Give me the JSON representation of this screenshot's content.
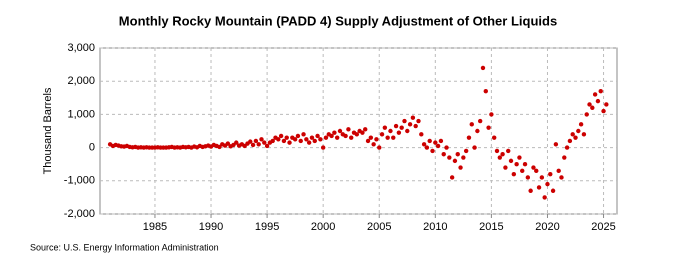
{
  "chart_data": {
    "type": "scatter",
    "title": "Monthly Rocky Mountain (PADD 4) Supply Adjustment of Other Liquids",
    "y_label": "Thousand Barrels",
    "source": "Source: U.S. Energy Information Administration",
    "color": "#cc0000",
    "grid": true,
    "xlim": [
      1980.1,
      2026.2
    ],
    "xticks": [
      1985,
      1990,
      1995,
      2000,
      2005,
      2010,
      2015,
      2020,
      2025
    ],
    "ylim": [
      -2000,
      3000
    ],
    "yticks": [
      {
        "value": -2000,
        "label": "-2,000"
      },
      {
        "value": -1000,
        "label": "-1,000"
      },
      0,
      {
        "value": 1000,
        "label": "1,000"
      },
      {
        "value": 2000,
        "label": "2,000"
      },
      {
        "value": 3000,
        "label": "3,000"
      }
    ],
    "x": [
      1981,
      1981.25,
      1981.5,
      1981.75,
      1982,
      1982.25,
      1982.5,
      1982.75,
      1983,
      1983.25,
      1983.5,
      1983.75,
      1984,
      1984.25,
      1984.5,
      1984.75,
      1985,
      1985.25,
      1985.5,
      1985.75,
      1986,
      1986.25,
      1986.5,
      1986.75,
      1987,
      1987.25,
      1987.5,
      1987.75,
      1988,
      1988.25,
      1988.5,
      1988.75,
      1989,
      1989.25,
      1989.5,
      1989.75,
      1990,
      1990.25,
      1990.5,
      1990.75,
      1991,
      1991.25,
      1991.5,
      1991.75,
      1992,
      1992.25,
      1992.5,
      1992.75,
      1993,
      1993.25,
      1993.5,
      1993.75,
      1994,
      1994.25,
      1994.5,
      1994.75,
      1995,
      1995.25,
      1995.5,
      1995.75,
      1996,
      1996.25,
      1996.5,
      1996.75,
      1997,
      1997.25,
      1997.5,
      1997.75,
      1998,
      1998.25,
      1998.5,
      1998.75,
      1999,
      1999.25,
      1999.5,
      1999.75,
      2000,
      2000.25,
      2000.5,
      2000.75,
      2001,
      2001.25,
      2001.5,
      2001.75,
      2002,
      2002.25,
      2002.5,
      2002.75,
      2003,
      2003.25,
      2003.5,
      2003.75,
      2004,
      2004.25,
      2004.5,
      2004.75,
      2005,
      2005.25,
      2005.5,
      2005.75,
      2006,
      2006.25,
      2006.5,
      2006.75,
      2007,
      2007.25,
      2007.5,
      2007.75,
      2008,
      2008.25,
      2008.5,
      2008.75,
      2009,
      2009.25,
      2009.5,
      2009.75,
      2010,
      2010.25,
      2010.5,
      2010.75,
      2011,
      2011.25,
      2011.5,
      2011.75,
      2012,
      2012.25,
      2012.5,
      2012.75,
      2013,
      2013.25,
      2013.5,
      2013.75,
      2014,
      2014.25,
      2014.5,
      2014.75,
      2015,
      2015.25,
      2015.5,
      2015.75,
      2016,
      2016.25,
      2016.5,
      2016.75,
      2017,
      2017.25,
      2017.5,
      2017.75,
      2018,
      2018.25,
      2018.5,
      2018.75,
      2019,
      2019.25,
      2019.5,
      2019.75,
      2020,
      2020.25,
      2020.5,
      2020.75,
      2021,
      2021.25,
      2021.5,
      2021.75,
      2022,
      2022.25,
      2022.5,
      2022.75,
      2023,
      2023.25,
      2023.5,
      2023.75,
      2024,
      2024.25,
      2024.5,
      2024.75,
      2025,
      2025.25
    ],
    "values": [
      100,
      50,
      80,
      60,
      40,
      30,
      50,
      20,
      10,
      20,
      0,
      10,
      0,
      10,
      0,
      0,
      0,
      10,
      0,
      0,
      0,
      10,
      20,
      0,
      10,
      0,
      20,
      10,
      20,
      0,
      30,
      10,
      50,
      20,
      40,
      60,
      30,
      80,
      50,
      20,
      100,
      60,
      120,
      40,
      80,
      150,
      60,
      100,
      50,
      120,
      180,
      80,
      200,
      100,
      250,
      150,
      50,
      150,
      200,
      300,
      250,
      350,
      200,
      300,
      150,
      300,
      250,
      350,
      200,
      400,
      250,
      150,
      300,
      200,
      350,
      250,
      0,
      300,
      400,
      350,
      450,
      300,
      500,
      400,
      350,
      550,
      300,
      450,
      400,
      500,
      450,
      550,
      200,
      300,
      100,
      250,
      0,
      400,
      600,
      300,
      500,
      300,
      650,
      450,
      600,
      800,
      500,
      700,
      900,
      650,
      800,
      400,
      100,
      0,
      200,
      -100,
      150,
      50,
      200,
      -200,
      0,
      -300,
      -900,
      -400,
      -200,
      -600,
      -300,
      -100,
      300,
      700,
      0,
      500,
      800,
      2400,
      1700,
      600,
      1000,
      300,
      -100,
      -300,
      -200,
      -600,
      -100,
      -400,
      -800,
      -500,
      -300,
      -700,
      -500,
      -900,
      -1300,
      -600,
      -700,
      -1200,
      -900,
      -1500,
      -1100,
      -800,
      -1300,
      100,
      -700,
      -900,
      -300,
      0,
      200,
      400,
      300,
      500,
      700,
      400,
      1000,
      1300,
      1200,
      1600,
      1400,
      1700,
      1100,
      1300
    ]
  }
}
